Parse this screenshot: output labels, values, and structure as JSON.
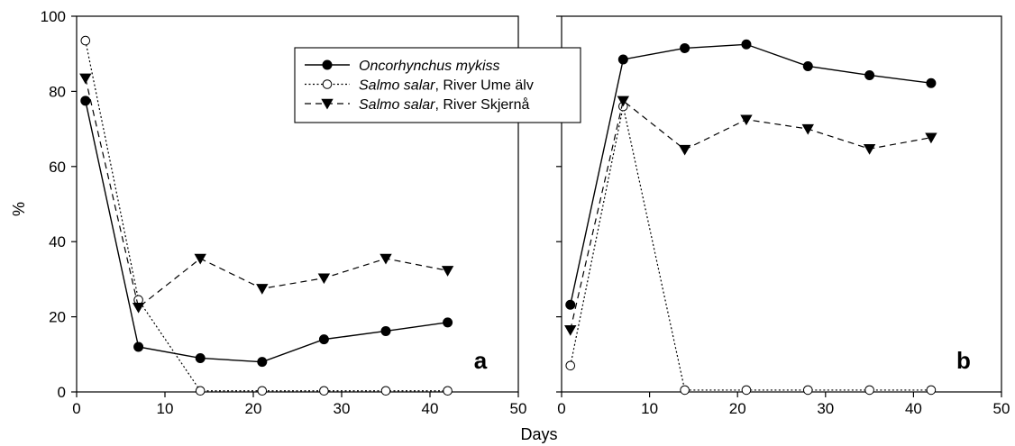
{
  "chart_data": {
    "type": "line",
    "xlabel": "Days",
    "ylabel": "%",
    "xlim": [
      0,
      50
    ],
    "ylim": [
      0,
      100
    ],
    "xticks": [
      0,
      10,
      20,
      30,
      40,
      50
    ],
    "yticks": [
      0,
      20,
      40,
      60,
      80,
      100
    ],
    "legend_placement": "top-right of panel a",
    "panels": [
      {
        "label": "a",
        "x": [
          1,
          7,
          14,
          21,
          28,
          35,
          42
        ],
        "series": [
          {
            "key": "om",
            "name": "Oncorhynchus mykiss",
            "values": [
              77.5,
              12,
              9,
              8,
              14,
              16.2,
              18.5
            ]
          },
          {
            "key": "ss_ume",
            "name": "Salmo salar, River Ume älv",
            "values": [
              93.5,
              24.5,
              0.3,
              0.3,
              0.3,
              0.3,
              0.3
            ]
          },
          {
            "key": "ss_skj",
            "name": "Salmo salar, River Skjernå",
            "values": [
              83.5,
              22.5,
              35.5,
              27.5,
              30.3,
              35.5,
              32.3
            ]
          }
        ]
      },
      {
        "label": "b",
        "x": [
          1,
          7,
          14,
          21,
          28,
          35,
          42
        ],
        "series": [
          {
            "key": "om",
            "name": "Oncorhynchus mykiss",
            "values": [
              23.2,
              88.5,
              91.5,
              92.5,
              86.7,
              84.3,
              82.2
            ]
          },
          {
            "key": "ss_ume",
            "name": "Salmo salar, River Ume älv",
            "values": [
              7,
              76,
              0.5,
              0.5,
              0.5,
              0.5,
              0.5
            ]
          },
          {
            "key": "ss_skj",
            "name": "Salmo salar, River Skjernå",
            "values": [
              16.5,
              77.5,
              64.5,
              72.5,
              70,
              64.7,
              67.7
            ]
          }
        ]
      }
    ],
    "legend": [
      {
        "key": "om",
        "italic": "Oncorhynchus mykiss",
        "rest": ""
      },
      {
        "key": "ss_ume",
        "italic": "Salmo salar",
        "rest": ", River Ume älv"
      },
      {
        "key": "ss_skj",
        "italic": "Salmo salar",
        "rest": ", River Skjernå"
      }
    ]
  }
}
